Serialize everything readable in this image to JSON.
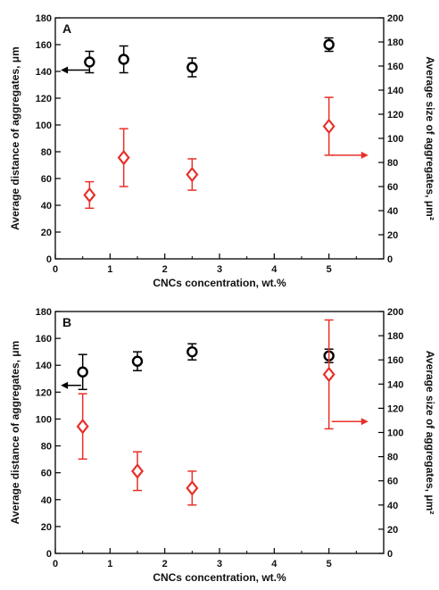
{
  "chart_data": [
    {
      "type": "scatter",
      "panel": "A",
      "xlabel": "CNCs concentration, wt.%",
      "ylabel_left": "Average distance of aggregates, μm",
      "ylabel_right": "Average size of aggregates, μm²",
      "xlim": [
        0,
        6
      ],
      "ylim_left": [
        0,
        180
      ],
      "ylim_right": [
        0,
        200
      ],
      "x_ticks": [
        0,
        1,
        2,
        3,
        4,
        5
      ],
      "y_ticks_left": [
        0,
        20,
        40,
        60,
        80,
        100,
        120,
        140,
        160,
        180
      ],
      "y_ticks_right": [
        0,
        20,
        40,
        60,
        80,
        100,
        120,
        140,
        160,
        180,
        200
      ],
      "series": [
        {
          "axis": "left",
          "marker": "circle",
          "color": "#000000",
          "points": [
            {
              "x": 0.625,
              "y": 147,
              "err": 8
            },
            {
              "x": 1.25,
              "y": 149,
              "err": 10
            },
            {
              "x": 2.5,
              "y": 143,
              "err": 7
            },
            {
              "x": 5,
              "y": 160,
              "err": 5
            }
          ]
        },
        {
          "axis": "right",
          "marker": "diamond",
          "color": "#e8302a",
          "points": [
            {
              "x": 0.625,
              "y": 53,
              "err": 11
            },
            {
              "x": 1.25,
              "y": 84,
              "err": 24
            },
            {
              "x": 2.5,
              "y": 70,
              "err": 13
            },
            {
              "x": 5,
              "y": 110,
              "err": 24
            }
          ]
        }
      ],
      "axis_arrows": [
        {
          "axis": "left",
          "x_from": 0.62,
          "x_to": 0.1,
          "y": 141,
          "color": "#000000"
        },
        {
          "axis": "right",
          "x_from": 5.05,
          "x_to": 5.72,
          "y": 86,
          "color": "#e8302a"
        }
      ]
    },
    {
      "type": "scatter",
      "panel": "B",
      "xlabel": "CNCs concentration, wt.%",
      "ylabel_left": "Average distance of aggregates, μm",
      "ylabel_right": "Average size of aggregates, μm²",
      "xlim": [
        0,
        6
      ],
      "ylim_left": [
        0,
        180
      ],
      "ylim_right": [
        0,
        200
      ],
      "x_ticks": [
        0,
        1,
        2,
        3,
        4,
        5
      ],
      "y_ticks_left": [
        0,
        20,
        40,
        60,
        80,
        100,
        120,
        140,
        160,
        180
      ],
      "y_ticks_right": [
        0,
        20,
        40,
        60,
        80,
        100,
        120,
        140,
        160,
        180,
        200
      ],
      "series": [
        {
          "axis": "left",
          "marker": "circle",
          "color": "#000000",
          "points": [
            {
              "x": 0.5,
              "y": 135,
              "err": 13
            },
            {
              "x": 1.5,
              "y": 143,
              "err": 7
            },
            {
              "x": 2.5,
              "y": 150,
              "err": 6
            },
            {
              "x": 5,
              "y": 147,
              "err": 5
            }
          ]
        },
        {
          "axis": "right",
          "marker": "diamond",
          "color": "#e8302a",
          "points": [
            {
              "x": 0.5,
              "y": 105,
              "err": 27
            },
            {
              "x": 1.5,
              "y": 68,
              "err": 16
            },
            {
              "x": 2.5,
              "y": 54,
              "err": 14
            },
            {
              "x": 5,
              "y": 148,
              "err": 45
            }
          ]
        }
      ],
      "axis_arrows": [
        {
          "axis": "left",
          "x_from": 0.47,
          "x_to": 0.1,
          "y": 125,
          "color": "#000000"
        },
        {
          "axis": "right",
          "x_from": 5.05,
          "x_to": 5.72,
          "y": 109,
          "color": "#e8302a"
        }
      ]
    }
  ]
}
